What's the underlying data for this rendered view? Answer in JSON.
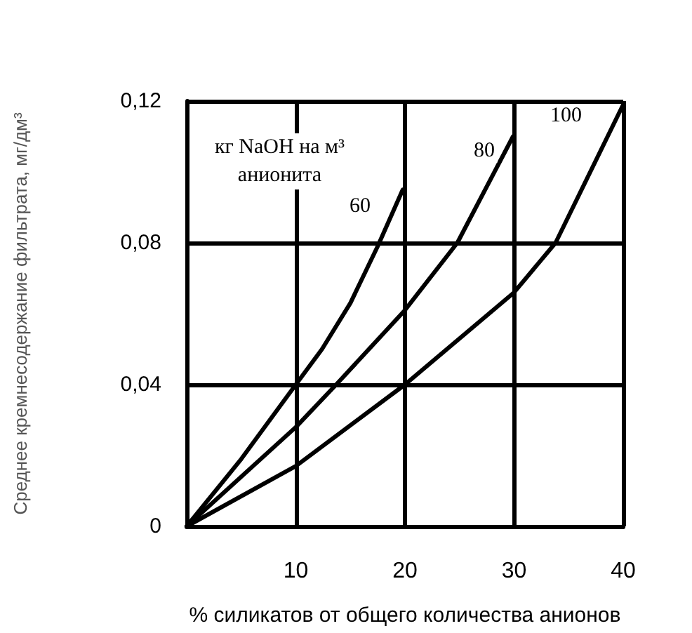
{
  "chart_data": {
    "type": "line",
    "xlabel": "% силикатов от общего количества анионов",
    "ylabel": "Среднее кремнесодержание фильтрата, мг/дм³",
    "legend_title": "кг NaOH на м³ анионита",
    "legend": false,
    "grid": true,
    "xlim": [
      0,
      40
    ],
    "xticks": [
      10,
      20,
      30,
      40
    ],
    "ylim": [
      0,
      0.12
    ],
    "yticks": [
      {
        "value": 0,
        "label": "0"
      },
      {
        "value": 0.04,
        "label": "0,04"
      },
      {
        "value": 0.08,
        "label": "0,08"
      },
      {
        "value": 0.12,
        "label": "0,12"
      }
    ],
    "series": [
      {
        "name": "60",
        "color": "#000000",
        "x": [
          0,
          5,
          10,
          12.4,
          15,
          17.5,
          19.8
        ],
        "values": [
          0,
          0.019,
          0.04,
          0.05,
          0.063,
          0.079,
          0.095
        ]
      },
      {
        "name": "80",
        "color": "#000000",
        "x": [
          0,
          10,
          13.7,
          20,
          24.8,
          29.9
        ],
        "values": [
          0,
          0.028,
          0.04,
          0.061,
          0.08,
          0.11
        ]
      },
      {
        "name": "100",
        "color": "#000000",
        "x": [
          0,
          10,
          20,
          30,
          33.8,
          40
        ],
        "values": [
          0,
          0.017,
          0.04,
          0.066,
          0.08,
          0.119
        ]
      }
    ]
  }
}
